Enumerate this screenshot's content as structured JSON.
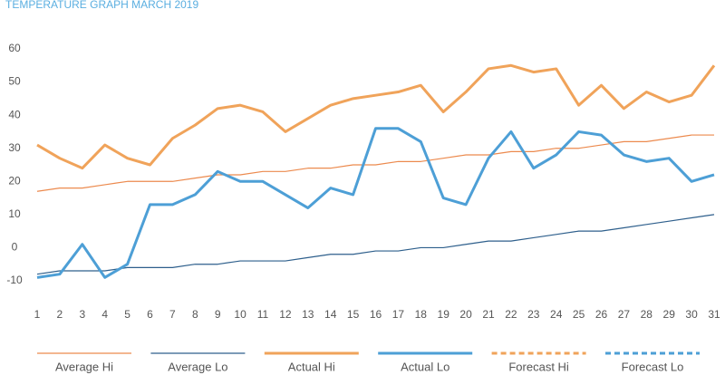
{
  "chart_data": {
    "type": "line",
    "title": "TEMPERATURE GRAPH MARCH 2019",
    "x": [
      1,
      2,
      3,
      4,
      5,
      6,
      7,
      8,
      9,
      10,
      11,
      12,
      13,
      14,
      15,
      16,
      17,
      18,
      19,
      20,
      21,
      22,
      23,
      24,
      25,
      26,
      27,
      28,
      29,
      30,
      31
    ],
    "xlim": [
      1,
      31
    ],
    "ylim": [
      -10,
      60
    ],
    "yticks": [
      -10,
      0,
      10,
      20,
      30,
      40,
      50,
      60
    ],
    "grid": false,
    "legend": "bottom",
    "series": [
      {
        "name": "Average Hi",
        "color": "#ec8a4e",
        "style": "thin",
        "values": [
          17,
          18,
          18,
          19,
          20,
          20,
          20,
          21,
          22,
          22,
          23,
          23,
          24,
          24,
          25,
          25,
          26,
          26,
          27,
          28,
          28,
          29,
          29,
          30,
          30,
          31,
          32,
          32,
          33,
          34,
          34
        ]
      },
      {
        "name": "Average Lo",
        "color": "#2e5f8c",
        "style": "thin",
        "values": [
          -8,
          -7,
          -7,
          -7,
          -6,
          -6,
          -6,
          -5,
          -5,
          -4,
          -4,
          -4,
          -3,
          -2,
          -2,
          -1,
          -1,
          0,
          0,
          1,
          2,
          2,
          3,
          4,
          5,
          5,
          6,
          7,
          8,
          9,
          10
        ]
      },
      {
        "name": "Actual Hi",
        "color": "#f0a35a",
        "style": "thick",
        "values": [
          31,
          27,
          24,
          31,
          27,
          25,
          33,
          37,
          42,
          43,
          41,
          35,
          39,
          43,
          45,
          46,
          47,
          49,
          41,
          47,
          54,
          55,
          53,
          54,
          43,
          49,
          42,
          47,
          44,
          46,
          55
        ]
      },
      {
        "name": "Actual Lo",
        "color": "#4d9fd6",
        "style": "thick",
        "values": [
          -9,
          -8,
          1,
          -9,
          -5,
          13,
          13,
          16,
          23,
          20,
          20,
          16,
          12,
          18,
          16,
          36,
          36,
          32,
          15,
          13,
          27,
          35,
          24,
          28,
          35,
          34,
          28,
          26,
          27,
          20,
          22
        ]
      },
      {
        "name": "Forecast Hi",
        "color": "#f0a35a",
        "style": "dashed",
        "values": [
          null,
          null,
          null,
          null,
          null,
          null,
          null,
          null,
          null,
          null,
          null,
          null,
          null,
          null,
          null,
          null,
          null,
          null,
          null,
          null,
          null,
          null,
          null,
          null,
          null,
          null,
          null,
          null,
          null,
          null,
          null
        ]
      },
      {
        "name": "Forecast Lo",
        "color": "#4d9fd6",
        "style": "dashed",
        "values": [
          null,
          null,
          null,
          null,
          null,
          null,
          null,
          null,
          null,
          null,
          null,
          null,
          null,
          null,
          null,
          null,
          null,
          null,
          null,
          null,
          null,
          null,
          null,
          null,
          null,
          null,
          null,
          null,
          null,
          null,
          null
        ]
      }
    ]
  }
}
